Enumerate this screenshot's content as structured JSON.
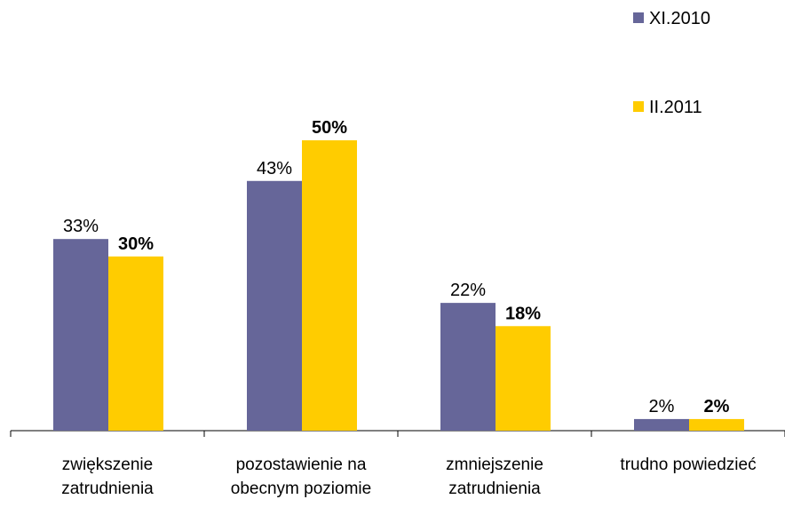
{
  "chart_data": {
    "type": "bar",
    "categories": [
      "zwiększenie zatrudnienia",
      "pozostawienie na obecnym poziomie",
      "zmniejszenie zatrudnienia",
      "trudno powiedzieć"
    ],
    "series": [
      {
        "name": "XI.2010",
        "color": "#666699",
        "values": [
          33,
          43,
          22,
          2
        ],
        "value_labels": [
          "33%",
          "43%",
          "22%",
          "2%"
        ]
      },
      {
        "name": "II.2011",
        "color": "#ffcc00",
        "values": [
          30,
          50,
          18,
          2
        ],
        "value_labels": [
          "30%",
          "50%",
          "18%",
          "2%"
        ]
      }
    ],
    "legend": "top-right"
  }
}
